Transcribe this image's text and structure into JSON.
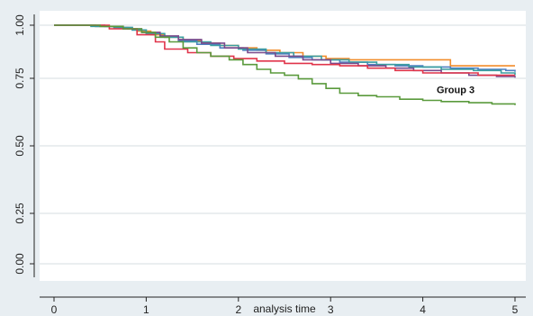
{
  "chart_data": {
    "type": "line",
    "step": true,
    "title": "",
    "xlabel": "analysis time",
    "ylabel": "",
    "xlim": [
      0,
      5
    ],
    "ylim": [
      0,
      1
    ],
    "xticks": [
      0,
      1,
      2,
      3,
      4,
      5
    ],
    "yticks": [
      0.0,
      0.25,
      0.5,
      0.75,
      1.0
    ],
    "xtick_labels": [
      "0",
      "1",
      "2",
      "3",
      "4",
      "5"
    ],
    "ytick_labels": [
      "0.00",
      "0.25",
      "0.50",
      "0.75",
      "1.00"
    ],
    "grid": {
      "horizontal": true,
      "vertical": false
    },
    "legend": "none",
    "background_color": "#e8eef2",
    "plot_background": "#ffffff",
    "series": [
      {
        "color": "#f28c2a",
        "x": [
          0,
          0.45,
          0.65,
          0.8,
          0.9,
          1.05,
          1.2,
          1.4,
          1.6,
          1.8,
          2.0,
          2.2,
          2.45,
          2.7,
          2.95,
          3.2,
          3.6,
          3.95,
          4.3,
          5.0
        ],
        "y": [
          1.0,
          0.995,
          0.99,
          0.985,
          0.975,
          0.96,
          0.95,
          0.935,
          0.925,
          0.915,
          0.905,
          0.895,
          0.885,
          0.87,
          0.86,
          0.855,
          0.855,
          0.855,
          0.83,
          0.83
        ]
      },
      {
        "color": "#4f7fc0",
        "x": [
          0,
          0.45,
          0.7,
          0.85,
          1.0,
          1.15,
          1.35,
          1.55,
          1.8,
          2.05,
          2.3,
          2.55,
          2.8,
          3.1,
          3.4,
          3.7,
          4.0,
          4.3,
          4.6,
          4.9,
          5.0
        ],
        "y": [
          1.0,
          0.995,
          0.99,
          0.98,
          0.965,
          0.95,
          0.935,
          0.92,
          0.905,
          0.895,
          0.88,
          0.865,
          0.855,
          0.845,
          0.835,
          0.83,
          0.825,
          0.82,
          0.815,
          0.81,
          0.805
        ]
      },
      {
        "color": "#3a9ea0",
        "x": [
          0,
          0.4,
          0.65,
          0.85,
          1.0,
          1.2,
          1.4,
          1.7,
          2.0,
          2.3,
          2.6,
          2.9,
          3.2,
          3.5,
          3.85,
          4.2,
          4.55,
          4.85,
          5.0
        ],
        "y": [
          1.0,
          0.995,
          0.99,
          0.98,
          0.965,
          0.95,
          0.93,
          0.915,
          0.9,
          0.885,
          0.87,
          0.855,
          0.845,
          0.835,
          0.825,
          0.815,
          0.81,
          0.8,
          0.79
        ]
      },
      {
        "color": "#7a4a8c",
        "x": [
          0,
          0.55,
          0.75,
          0.95,
          1.15,
          1.35,
          1.6,
          1.85,
          2.1,
          2.4,
          2.7,
          3.0,
          3.3,
          3.6,
          3.9,
          4.2,
          4.5,
          4.8,
          5.0
        ],
        "y": [
          1.0,
          0.995,
          0.985,
          0.97,
          0.955,
          0.94,
          0.925,
          0.905,
          0.885,
          0.87,
          0.855,
          0.84,
          0.83,
          0.82,
          0.81,
          0.8,
          0.79,
          0.785,
          0.78
        ]
      },
      {
        "color": "#e0344a",
        "x": [
          0,
          0.6,
          0.9,
          1.1,
          1.2,
          1.45,
          1.7,
          1.95,
          2.2,
          2.5,
          2.8,
          3.1,
          3.4,
          3.7,
          4.0,
          4.3,
          4.6,
          5.0
        ],
        "y": [
          1.0,
          0.985,
          0.96,
          0.93,
          0.9,
          0.885,
          0.87,
          0.86,
          0.85,
          0.84,
          0.835,
          0.83,
          0.82,
          0.81,
          0.8,
          0.8,
          0.79,
          0.79
        ]
      },
      {
        "name": "Group 3",
        "color": "#5a9a3c",
        "x": [
          0,
          0.5,
          0.75,
          0.95,
          1.1,
          1.25,
          1.4,
          1.55,
          1.7,
          1.9,
          2.05,
          2.2,
          2.35,
          2.5,
          2.65,
          2.8,
          2.95,
          3.1,
          3.3,
          3.5,
          3.75,
          4.0,
          4.2,
          4.5,
          4.75,
          5.0
        ],
        "y": [
          1.0,
          0.995,
          0.985,
          0.97,
          0.95,
          0.93,
          0.905,
          0.885,
          0.87,
          0.855,
          0.835,
          0.815,
          0.8,
          0.79,
          0.775,
          0.755,
          0.735,
          0.715,
          0.705,
          0.7,
          0.69,
          0.685,
          0.68,
          0.675,
          0.67,
          0.665
        ]
      }
    ],
    "annotations": [
      {
        "text": "Group 3",
        "x": 4.15,
        "y": 0.715
      }
    ]
  }
}
